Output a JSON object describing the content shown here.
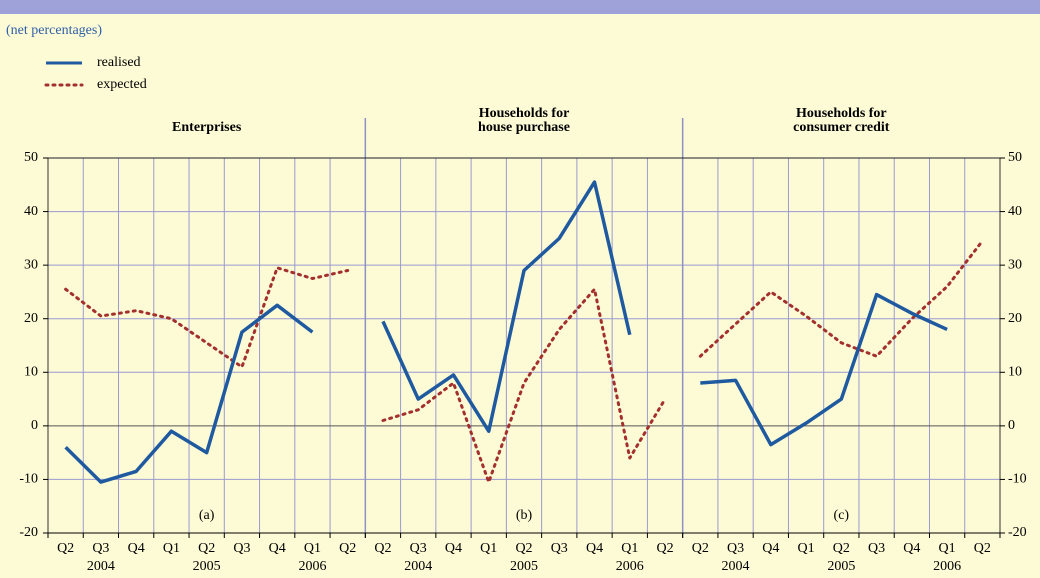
{
  "subtitle": "(net percentages)",
  "chart_data": [
    {
      "type": "line",
      "title": [
        "Enterprises"
      ],
      "annotation": "(a)",
      "categories": [
        "Q2",
        "Q3",
        "Q4",
        "Q1",
        "Q2",
        "Q3",
        "Q4",
        "Q1",
        "Q2"
      ],
      "year_labels": [
        null,
        "2004",
        null,
        null,
        "2005",
        null,
        null,
        "2006",
        null
      ],
      "series": [
        {
          "name": "realised",
          "color": "#1f5aa0",
          "style": "solid",
          "values": [
            -4,
            -10.5,
            -8.5,
            -1,
            -5,
            17.5,
            22.5,
            17.5,
            null
          ]
        },
        {
          "name": "expected",
          "color": "#a3302c",
          "style": "dotted",
          "values": [
            25.5,
            20.5,
            21.5,
            20,
            15.5,
            11,
            29.5,
            27.5,
            29
          ]
        }
      ],
      "ylim": [
        -20,
        50
      ],
      "yticks": [
        -20,
        -10,
        0,
        10,
        20,
        30,
        40,
        50
      ],
      "grid": true
    },
    {
      "type": "line",
      "title": [
        "Households for",
        "house purchase"
      ],
      "annotation": "(b)",
      "categories": [
        "Q2",
        "Q3",
        "Q4",
        "Q1",
        "Q2",
        "Q3",
        "Q4",
        "Q1",
        "Q2"
      ],
      "year_labels": [
        null,
        "2004",
        null,
        null,
        "2005",
        null,
        null,
        "2006",
        null
      ],
      "series": [
        {
          "name": "realised",
          "color": "#1f5aa0",
          "style": "solid",
          "values": [
            19.5,
            5,
            9.5,
            -1,
            29,
            35,
            45.5,
            17,
            null
          ]
        },
        {
          "name": "expected",
          "color": "#a3302c",
          "style": "dotted",
          "values": [
            1,
            3,
            8,
            -10.5,
            8,
            18,
            25.5,
            -6,
            5
          ]
        }
      ],
      "ylim": [
        -20,
        50
      ],
      "yticks": [
        -20,
        -10,
        0,
        10,
        20,
        30,
        40,
        50
      ],
      "grid": true
    },
    {
      "type": "line",
      "title": [
        "Households for",
        "consumer credit"
      ],
      "annotation": "(c)",
      "categories": [
        "Q2",
        "Q3",
        "Q4",
        "Q1",
        "Q2",
        "Q3",
        "Q4",
        "Q1",
        "Q2"
      ],
      "year_labels": [
        null,
        "2004",
        null,
        null,
        "2005",
        null,
        null,
        "2006",
        null
      ],
      "series": [
        {
          "name": "realised",
          "color": "#1f5aa0",
          "style": "solid",
          "values": [
            8,
            8.5,
            -3.5,
            0.5,
            5,
            24.5,
            21,
            18,
            null
          ]
        },
        {
          "name": "expected",
          "color": "#a3302c",
          "style": "dotted",
          "values": [
            13,
            19,
            25,
            20.5,
            15.5,
            13,
            20,
            26,
            34.5
          ]
        }
      ],
      "ylim": [
        -20,
        50
      ],
      "yticks": [
        -20,
        -10,
        0,
        10,
        20,
        30,
        40,
        50
      ],
      "grid": true
    }
  ]
}
